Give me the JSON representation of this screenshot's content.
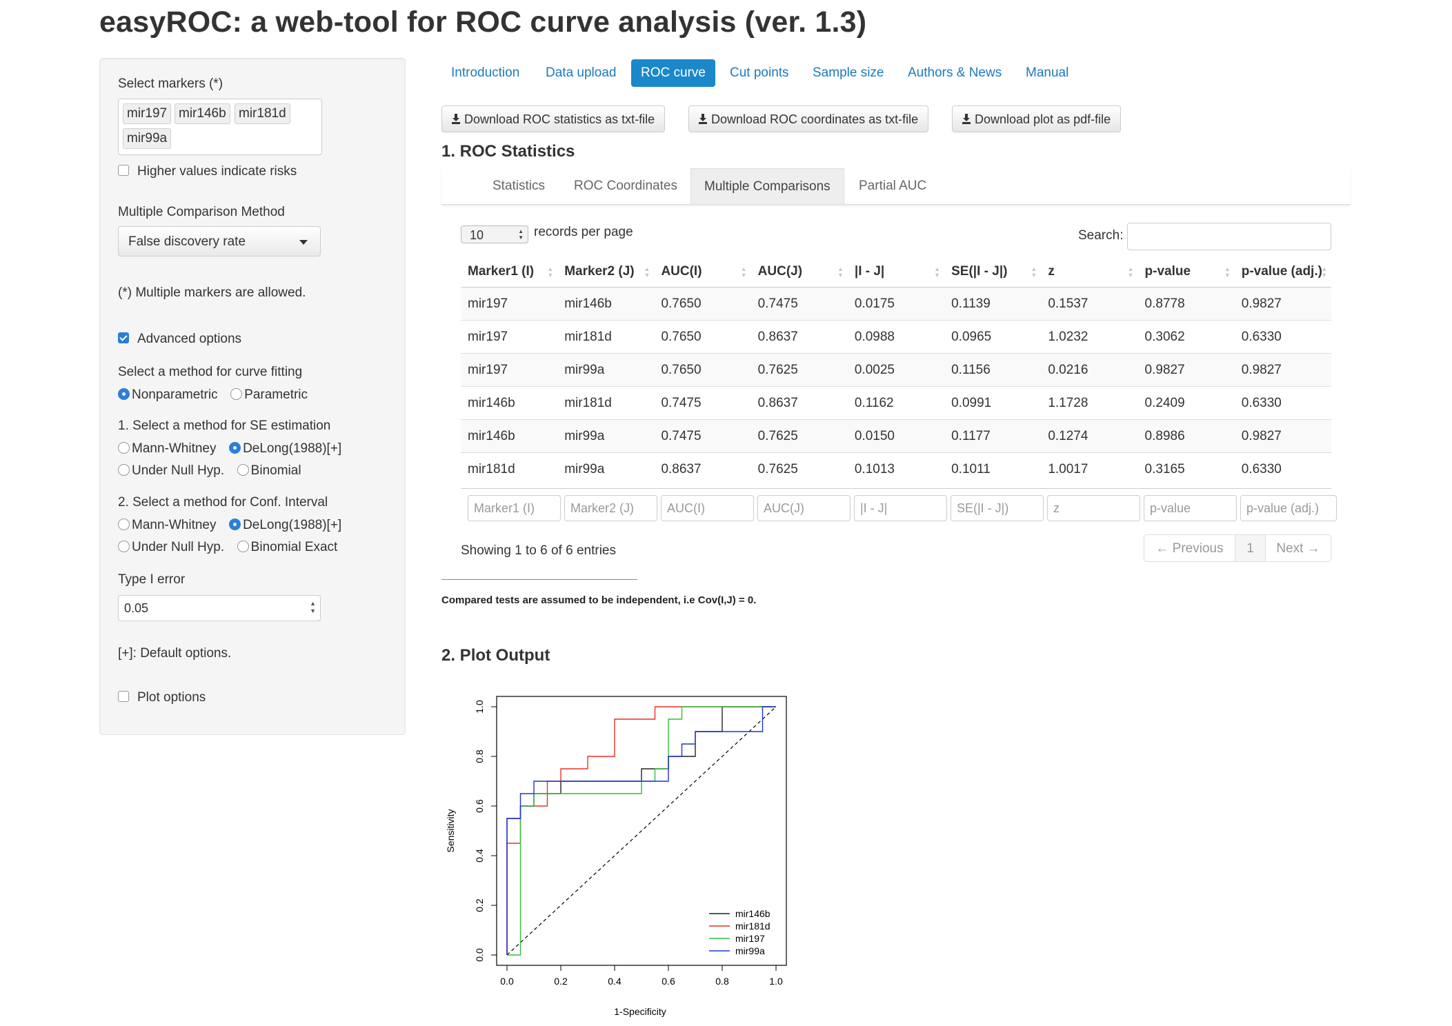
{
  "title": "easyROC: a web-tool for ROC curve analysis (ver. 1.3)",
  "sidebar": {
    "select_markers_label": "Select markers (*)",
    "markers": [
      "mir197",
      "mir146b",
      "mir181d",
      "mir99a"
    ],
    "higher_values_label": "Higher values indicate risks",
    "higher_values_checked": false,
    "mcm_label": "Multiple Comparison Method",
    "mcm_value": "False discovery rate",
    "multi_note": "(*) Multiple markers are allowed.",
    "advanced_label": "Advanced options",
    "advanced_checked": true,
    "fit_label": "Select a method for curve fitting",
    "fit_options": [
      "Nonparametric",
      "Parametric"
    ],
    "se_label": "1. Select a method for SE estimation",
    "se_options": [
      "Mann-Whitney",
      "DeLong(1988)[+]",
      "Under Null Hyp.",
      "Binomial"
    ],
    "ci_label": "2. Select a method for Conf. Interval",
    "ci_options": [
      "Mann-Whitney",
      "DeLong(1988)[+]",
      "Under Null Hyp.",
      "Binomial Exact"
    ],
    "type1_label": "Type I error",
    "type1_value": "0.05",
    "default_note": "[+]: Default options.",
    "plot_options_label": "Plot options",
    "plot_options_checked": false
  },
  "nav": {
    "tabs": [
      "Introduction",
      "Data upload",
      "ROC curve",
      "Cut points",
      "Sample size",
      "Authors & News",
      "Manual"
    ],
    "active": "ROC curve"
  },
  "downloads": {
    "stats": "Download ROC statistics as txt-file",
    "coords": "Download ROC coordinates as txt-file",
    "plot": "Download plot as pdf-file"
  },
  "section1_title": "1. ROC Statistics",
  "subtabs": {
    "items": [
      "Statistics",
      "ROC Coordinates",
      "Multiple Comparisons",
      "Partial AUC"
    ],
    "active": "Multiple Comparisons"
  },
  "table": {
    "length_value": "10",
    "length_suffix": "records per page",
    "search_label": "Search:",
    "columns": [
      "Marker1 (I)",
      "Marker2 (J)",
      "AUC(I)",
      "AUC(J)",
      "|I - J|",
      "SE(|I - J|)",
      "z",
      "p-value",
      "p-value (adj.)"
    ],
    "rows": [
      [
        "mir197",
        "mir146b",
        "0.7650",
        "0.7475",
        "0.0175",
        "0.1139",
        "0.1537",
        "0.8778",
        "0.9827"
      ],
      [
        "mir197",
        "mir181d",
        "0.7650",
        "0.8637",
        "0.0988",
        "0.0965",
        "1.0232",
        "0.3062",
        "0.6330"
      ],
      [
        "mir197",
        "mir99a",
        "0.7650",
        "0.7625",
        "0.0025",
        "0.1156",
        "0.0216",
        "0.9827",
        "0.9827"
      ],
      [
        "mir146b",
        "mir181d",
        "0.7475",
        "0.8637",
        "0.1162",
        "0.0991",
        "1.1728",
        "0.2409",
        "0.6330"
      ],
      [
        "mir146b",
        "mir99a",
        "0.7475",
        "0.7625",
        "0.0150",
        "0.1177",
        "0.1274",
        "0.8986",
        "0.9827"
      ],
      [
        "mir181d",
        "mir99a",
        "0.8637",
        "0.7625",
        "0.1013",
        "0.1011",
        "1.0017",
        "0.3165",
        "0.6330"
      ]
    ],
    "filter_placeholders": [
      "Marker1 (I)",
      "Marker2 (J)",
      "AUC(I)",
      "AUC(J)",
      "|I - J|",
      "SE(|I - J|)",
      "z",
      "p-value",
      "p-value (adj.)"
    ],
    "info": "Showing 1 to 6 of 6 entries",
    "prev": "← Previous",
    "page": "1",
    "next": "Next →"
  },
  "independence_note": "Compared tests are assumed to be independent, i.e Cov(I,J) = 0.",
  "section2_title": "2. Plot Output",
  "chart_data": {
    "type": "line",
    "xlabel": "1-Specificity",
    "ylabel": "Sensitivity",
    "xlim": [
      0,
      1
    ],
    "ylim": [
      0,
      1
    ],
    "xticks": [
      "0.0",
      "0.2",
      "0.4",
      "0.6",
      "0.8",
      "1.0"
    ],
    "yticks": [
      "0.0",
      "0.2",
      "0.4",
      "0.6",
      "0.8",
      "1.0"
    ],
    "legend_position": "bottom-right",
    "series": [
      {
        "name": "mir146b",
        "color": "#222222",
        "x": [
          0,
          0,
          0.05,
          0.05,
          0.1,
          0.1,
          0.2,
          0.2,
          0.5,
          0.5,
          0.6,
          0.6,
          0.7,
          0.7,
          0.8,
          0.8,
          0.9,
          0.9,
          1
        ],
        "y": [
          0,
          0.55,
          0.55,
          0.6,
          0.6,
          0.65,
          0.65,
          0.7,
          0.7,
          0.75,
          0.75,
          0.8,
          0.8,
          0.9,
          0.9,
          1,
          1,
          1,
          1
        ]
      },
      {
        "name": "mir181d",
        "color": "#e8302a",
        "x": [
          0,
          0,
          0.05,
          0.05,
          0.15,
          0.15,
          0.2,
          0.2,
          0.3,
          0.3,
          0.35,
          0.35,
          0.4,
          0.4,
          0.55,
          0.55,
          1
        ],
        "y": [
          0,
          0.45,
          0.45,
          0.6,
          0.6,
          0.7,
          0.7,
          0.75,
          0.75,
          0.8,
          0.8,
          0.8,
          0.8,
          0.95,
          0.95,
          1,
          1
        ]
      },
      {
        "name": "mir197",
        "color": "#2fbf3f",
        "x": [
          0,
          0.05,
          0.05,
          0.1,
          0.1,
          0.5,
          0.5,
          0.55,
          0.55,
          0.6,
          0.6,
          0.65,
          0.65,
          1
        ],
        "y": [
          0,
          0,
          0.6,
          0.6,
          0.65,
          0.65,
          0.7,
          0.7,
          0.75,
          0.75,
          0.95,
          0.95,
          1,
          1
        ]
      },
      {
        "name": "mir99a",
        "color": "#2330d6",
        "x": [
          0,
          0,
          0.05,
          0.05,
          0.1,
          0.1,
          0.6,
          0.6,
          0.65,
          0.65,
          0.7,
          0.7,
          0.95,
          0.95,
          1
        ],
        "y": [
          0,
          0.55,
          0.55,
          0.65,
          0.65,
          0.7,
          0.7,
          0.8,
          0.8,
          0.85,
          0.85,
          0.9,
          0.9,
          1,
          1
        ]
      }
    ]
  }
}
